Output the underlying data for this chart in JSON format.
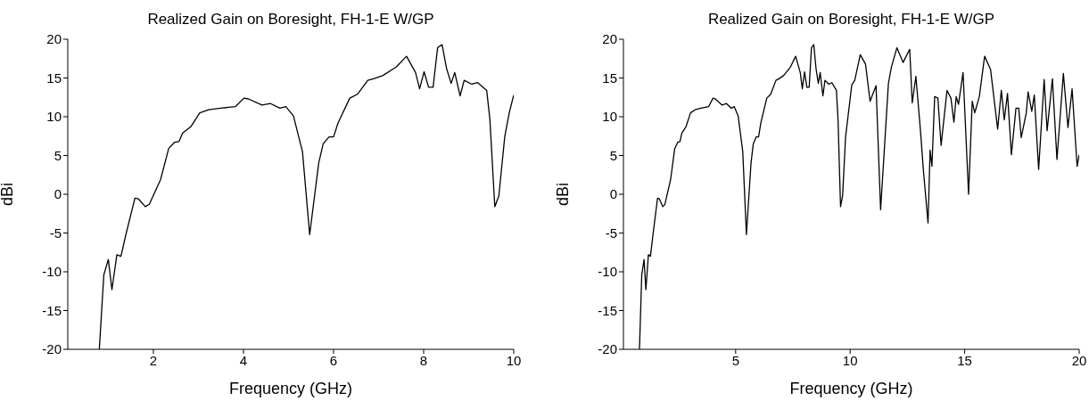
{
  "chart_data": [
    {
      "type": "line",
      "title": "Realized Gain on Boresight, FH-1-E W/GP",
      "xlabel": "Frequency (GHz)",
      "ylabel": "dBi",
      "xlim": [
        0.1,
        10
      ],
      "ylim": [
        -20,
        20
      ],
      "xticks": [
        2,
        4,
        6,
        8,
        10
      ],
      "yticks": [
        -20,
        -15,
        -10,
        -5,
        0,
        5,
        10,
        15,
        20
      ],
      "series": [
        {
          "color": "#000000",
          "x": [
            0.8,
            0.9,
            1.0,
            1.08,
            1.19,
            1.28,
            1.39,
            1.59,
            1.67,
            1.82,
            1.91,
            2.16,
            2.34,
            2.47,
            2.57,
            2.65,
            2.83,
            3.03,
            3.23,
            3.49,
            3.82,
            4.01,
            4.11,
            4.41,
            4.6,
            4.81,
            4.94,
            5.11,
            5.31,
            5.47,
            5.67,
            5.77,
            5.9,
            6.0,
            6.1,
            6.36,
            6.53,
            6.76,
            6.89,
            7.09,
            7.39,
            7.62,
            7.82,
            7.91,
            8.01,
            8.11,
            8.21,
            8.31,
            8.41,
            8.51,
            8.61,
            8.69,
            8.81,
            8.9,
            9.07,
            9.2,
            9.4,
            9.47,
            9.58,
            9.67,
            9.8,
            9.9,
            10.0
          ],
          "values": [
            -20,
            -10.4,
            -8.4,
            -12.3,
            -7.8,
            -8.0,
            -5.2,
            -0.5,
            -0.6,
            -1.6,
            -1.3,
            1.9,
            5.9,
            6.7,
            6.8,
            7.9,
            8.7,
            10.5,
            10.9,
            11.1,
            11.3,
            12.4,
            12.3,
            11.5,
            11.7,
            11.1,
            11.3,
            10.1,
            5.5,
            -5.2,
            4.0,
            6.5,
            7.4,
            7.4,
            9.2,
            12.4,
            12.9,
            14.7,
            14.9,
            15.3,
            16.4,
            17.8,
            15.7,
            13.6,
            15.8,
            13.8,
            13.8,
            18.9,
            19.3,
            16.2,
            14.3,
            15.7,
            12.7,
            14.7,
            14.2,
            14.4,
            13.4,
            9.7,
            -1.6,
            -0.2,
            7.4,
            10.5,
            12.8
          ]
        }
      ]
    },
    {
      "type": "line",
      "title": "Realized Gain on Boresight, FH-1-E W/GP",
      "xlabel": "Frequency (GHz)",
      "ylabel": "dBi",
      "xlim": [
        0.1,
        20
      ],
      "ylim": [
        -20,
        20
      ],
      "xticks": [
        5,
        10,
        15,
        20
      ],
      "yticks": [
        -20,
        -15,
        -10,
        -5,
        0,
        5,
        10,
        15,
        20
      ],
      "series": [
        {
          "color": "#000000",
          "x": [
            0.8,
            0.9,
            1.0,
            1.08,
            1.19,
            1.28,
            1.39,
            1.59,
            1.67,
            1.82,
            1.91,
            2.16,
            2.34,
            2.47,
            2.57,
            2.65,
            2.83,
            3.03,
            3.23,
            3.49,
            3.82,
            4.01,
            4.11,
            4.41,
            4.6,
            4.81,
            4.94,
            5.11,
            5.31,
            5.47,
            5.67,
            5.77,
            5.9,
            6.0,
            6.1,
            6.36,
            6.53,
            6.76,
            6.89,
            7.09,
            7.39,
            7.62,
            7.82,
            7.91,
            8.01,
            8.11,
            8.21,
            8.31,
            8.41,
            8.51,
            8.61,
            8.69,
            8.81,
            8.9,
            9.07,
            9.2,
            9.4,
            9.47,
            9.58,
            9.67,
            9.8,
            10.07,
            10.2,
            10.44,
            10.67,
            10.87,
            11.13,
            11.33,
            11.67,
            11.8,
            12.04,
            12.31,
            12.6,
            12.71,
            12.87,
            13.07,
            13.2,
            13.4,
            13.49,
            13.57,
            13.69,
            13.83,
            13.97,
            14.23,
            14.4,
            14.53,
            14.63,
            14.73,
            14.93,
            15.17,
            15.33,
            15.44,
            15.64,
            15.87,
            16.13,
            16.44,
            16.6,
            16.73,
            16.87,
            17.04,
            17.24,
            17.36,
            17.47,
            17.69,
            17.77,
            17.93,
            18.04,
            18.23,
            18.47,
            18.6,
            18.83,
            19.03,
            19.31,
            19.51,
            19.69,
            19.91,
            20.0
          ],
          "values": [
            -20,
            -10.4,
            -8.4,
            -12.3,
            -7.8,
            -8.0,
            -5.2,
            -0.5,
            -0.6,
            -1.6,
            -1.3,
            1.9,
            5.9,
            6.7,
            6.8,
            7.9,
            8.7,
            10.5,
            10.9,
            11.1,
            11.3,
            12.4,
            12.3,
            11.5,
            11.7,
            11.1,
            11.3,
            10.1,
            5.5,
            -5.2,
            4.0,
            6.5,
            7.4,
            7.4,
            9.2,
            12.4,
            12.9,
            14.7,
            14.9,
            15.3,
            16.4,
            17.8,
            15.7,
            13.6,
            15.8,
            13.8,
            13.8,
            18.9,
            19.3,
            16.2,
            14.3,
            15.7,
            12.7,
            14.7,
            14.2,
            14.4,
            13.4,
            9.7,
            -1.6,
            -0.2,
            7.4,
            14.1,
            14.7,
            18.0,
            16.8,
            12.0,
            14.0,
            -2.0,
            14.3,
            16.4,
            18.9,
            17.0,
            18.7,
            11.8,
            15.2,
            8.2,
            3.0,
            -3.7,
            5.7,
            3.6,
            12.6,
            12.4,
            6.3,
            13.4,
            12.4,
            9.3,
            12.6,
            11.6,
            15.7,
            0.0,
            12.0,
            10.5,
            12.6,
            17.8,
            16.1,
            8.4,
            13.4,
            9.6,
            13.0,
            5.1,
            11.1,
            11.1,
            7.3,
            10.5,
            13.2,
            10.7,
            12.8,
            3.2,
            14.8,
            8.2,
            14.9,
            4.5,
            15.6,
            8.6,
            13.6,
            3.6,
            5.1
          ]
        }
      ]
    }
  ]
}
